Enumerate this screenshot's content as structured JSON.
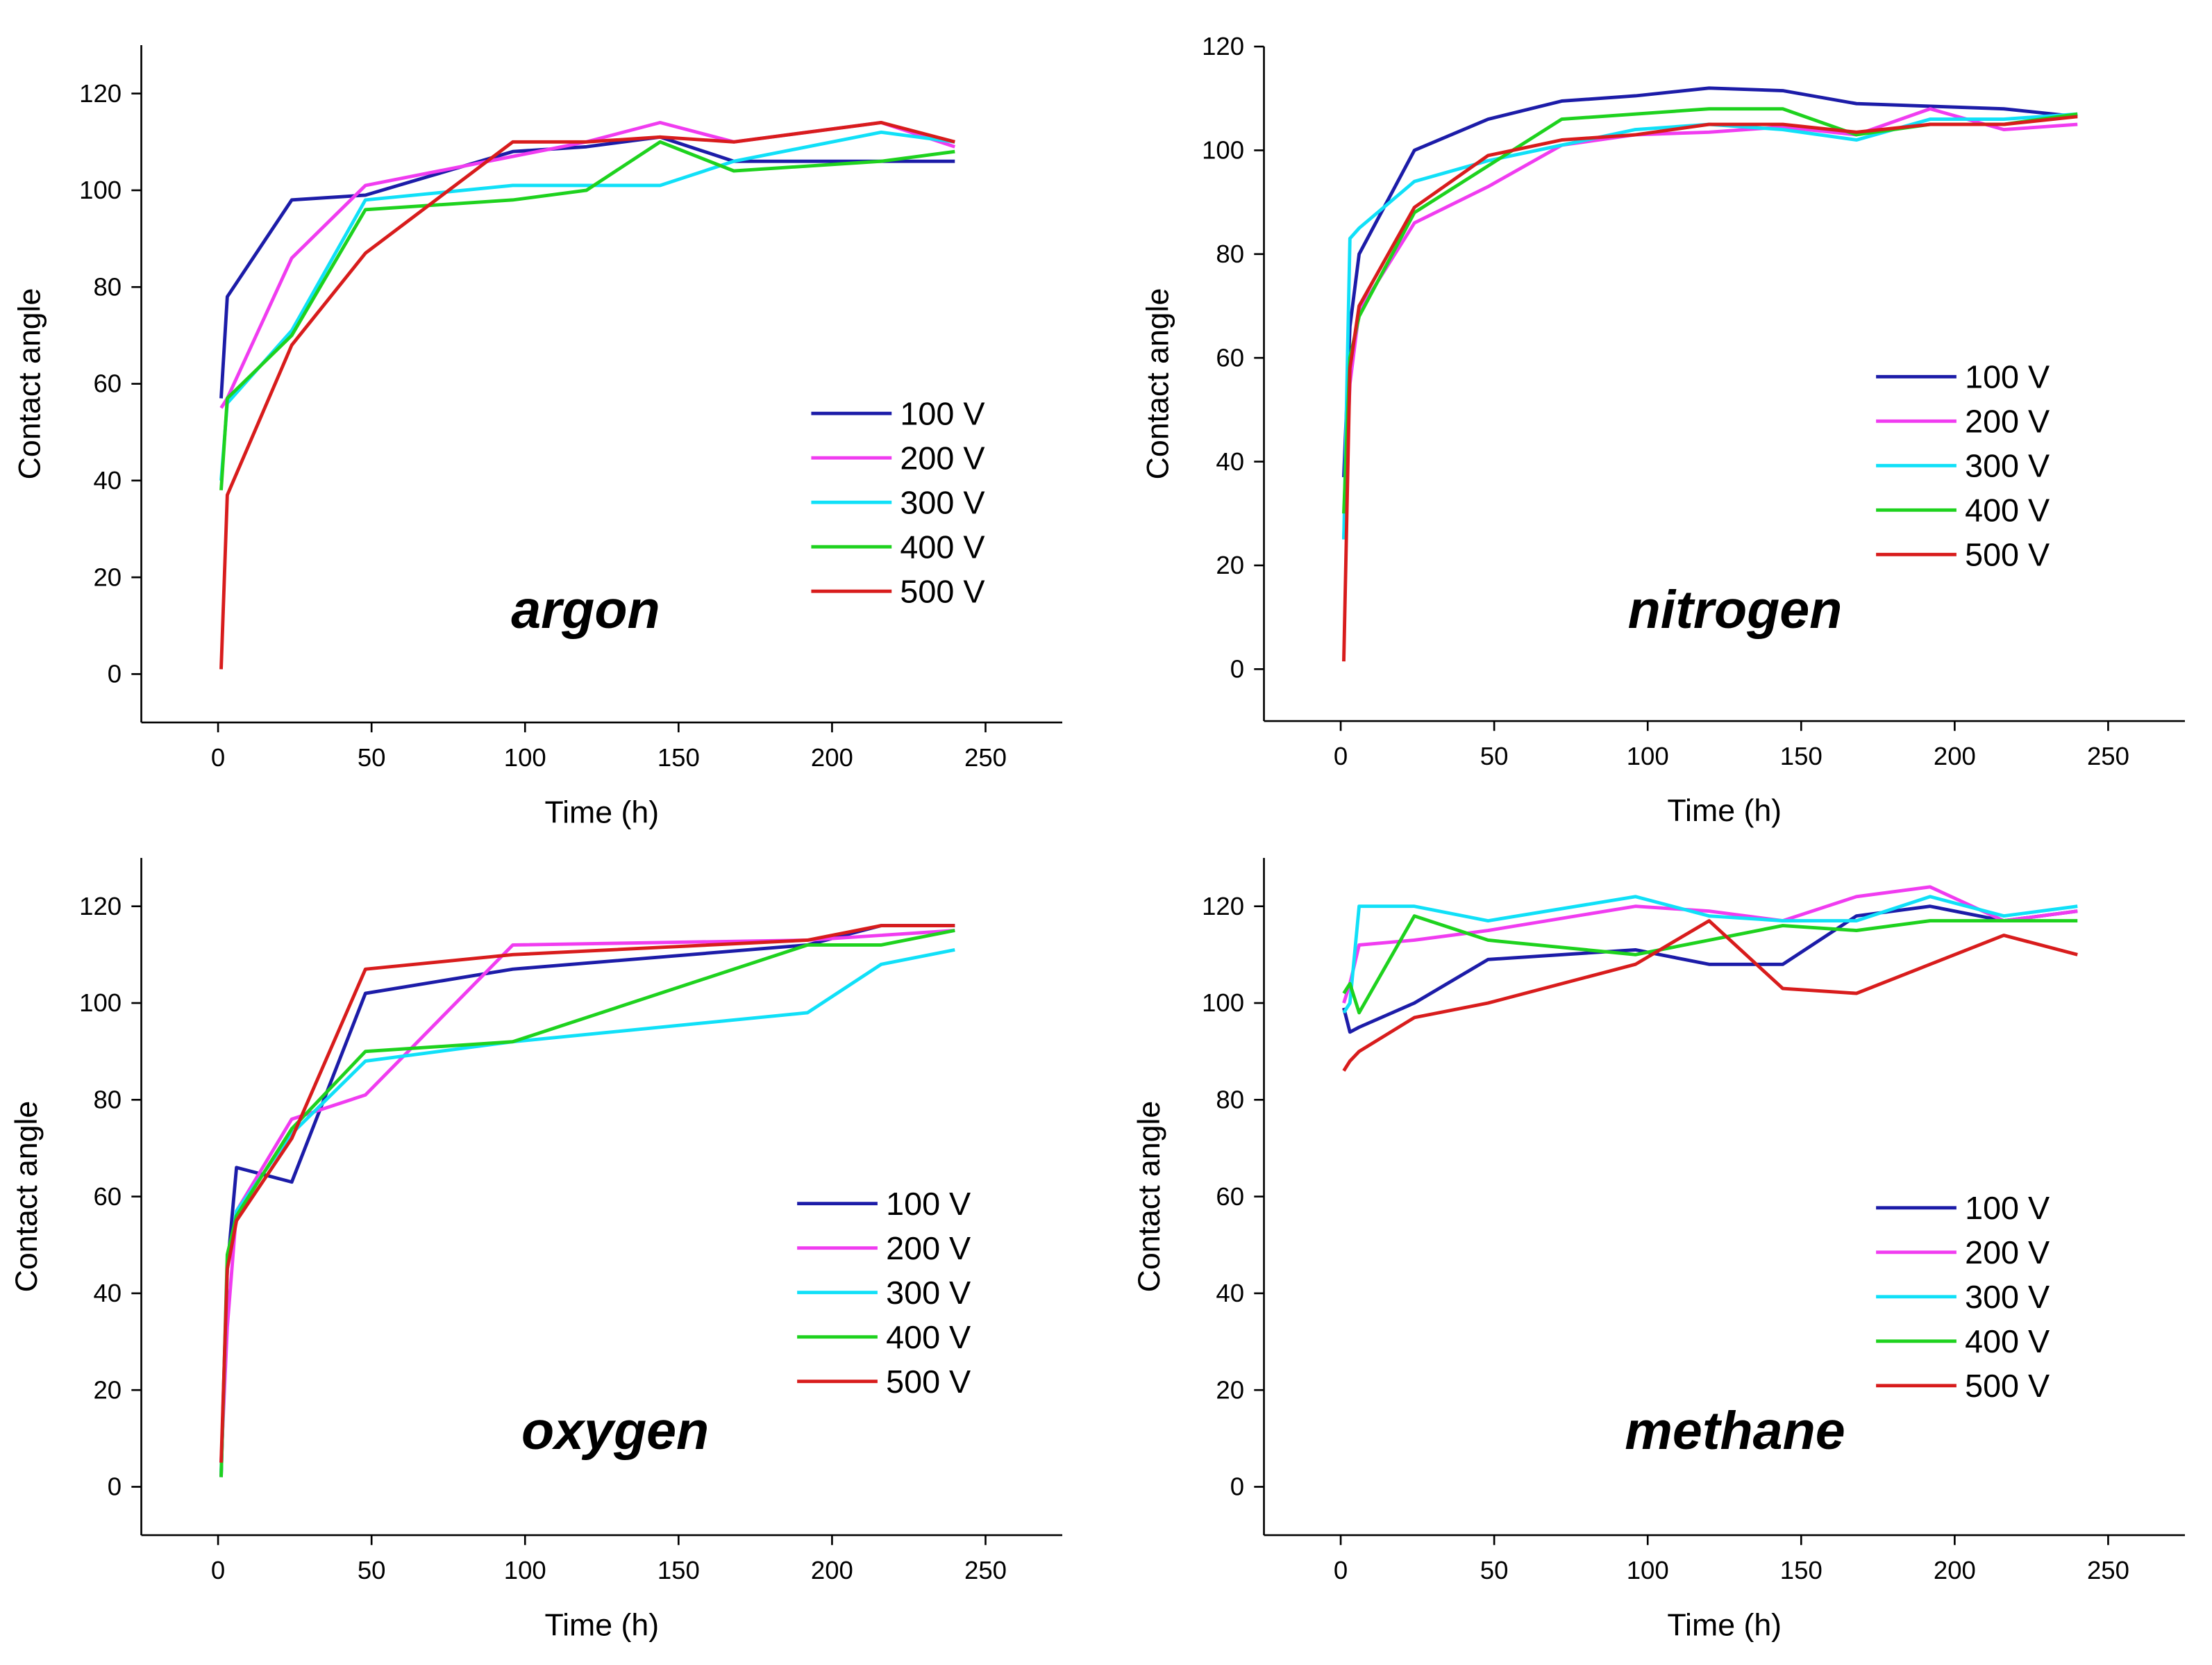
{
  "chart_data": [
    {
      "type": "line",
      "title": "argon",
      "x_label": "Time (h)",
      "y_label": "Contact angle",
      "x": [
        1,
        3,
        24,
        48,
        96,
        120,
        144,
        168,
        216,
        240
      ],
      "xlim": [
        -25,
        275
      ],
      "xticks": [
        0,
        50,
        100,
        150,
        200,
        250
      ],
      "ylim": [
        -10,
        130
      ],
      "yticks": [
        0,
        20,
        40,
        60,
        80,
        100,
        120
      ],
      "series": [
        {
          "name": "100 V",
          "color": "#1c1ca8",
          "values": [
            57,
            78,
            98,
            99,
            108,
            109,
            111,
            106,
            106,
            106
          ]
        },
        {
          "name": "200 V",
          "color": "#f03cf0",
          "values": [
            55,
            57,
            86,
            101,
            107,
            110,
            114,
            110,
            114,
            109
          ]
        },
        {
          "name": "300 V",
          "color": "#10e0f8",
          "values": [
            40,
            56,
            71,
            98,
            101,
            101,
            101,
            106,
            112,
            110
          ]
        },
        {
          "name": "400 V",
          "color": "#1ed21e",
          "values": [
            38,
            57,
            70,
            96,
            98,
            100,
            110,
            104,
            106,
            108
          ]
        },
        {
          "name": "500 V",
          "color": "#d81c1c",
          "values": [
            1,
            37,
            68,
            87,
            110,
            110,
            111,
            110,
            114,
            110
          ]
        }
      ]
    },
    {
      "type": "line",
      "title": "nitrogen",
      "x_label": "Time (h)",
      "y_label": "Contact angle",
      "x": [
        1,
        3,
        6,
        24,
        48,
        72,
        96,
        120,
        144,
        168,
        192,
        216,
        240
      ],
      "xlim": [
        -25,
        275
      ],
      "xticks": [
        0,
        50,
        100,
        150,
        200,
        250
      ],
      "ylim": [
        -10,
        120
      ],
      "yticks": [
        0,
        20,
        40,
        60,
        80,
        100,
        120
      ],
      "series": [
        {
          "name": "100 V",
          "color": "#1c1ca8",
          "values": [
            37,
            66,
            80,
            100,
            106,
            109.5,
            110.5,
            112,
            111.5,
            109,
            108.5,
            108,
            106.5
          ]
        },
        {
          "name": "200 V",
          "color": "#f03cf0",
          "values": [
            25,
            55,
            69,
            86,
            93,
            101,
            103,
            103.5,
            104.5,
            103,
            108,
            104,
            105
          ]
        },
        {
          "name": "300 V",
          "color": "#10e0f8",
          "values": [
            25,
            83,
            85,
            94,
            98,
            101,
            104,
            105,
            104,
            102,
            106,
            106,
            107
          ]
        },
        {
          "name": "400 V",
          "color": "#1ed21e",
          "values": [
            30,
            60,
            68,
            88,
            97,
            106,
            107,
            108,
            108,
            103,
            105,
            105,
            107
          ]
        },
        {
          "name": "500 V",
          "color": "#d81c1c",
          "values": [
            1.5,
            58,
            70,
            89,
            99,
            102,
            103,
            105,
            105,
            103.5,
            105,
            105,
            106.5
          ]
        }
      ]
    },
    {
      "type": "line",
      "title": "oxygen",
      "x_label": "Time (h)",
      "y_label": "Contact angle",
      "x": [
        1,
        3,
        6,
        24,
        48,
        96,
        192,
        216,
        240
      ],
      "xlim": [
        -25,
        275
      ],
      "xticks": [
        0,
        50,
        100,
        150,
        200,
        250
      ],
      "ylim": [
        -10,
        130
      ],
      "yticks": [
        0,
        20,
        40,
        60,
        80,
        100,
        120
      ],
      "series": [
        {
          "name": "100 V",
          "color": "#1c1ca8",
          "values": [
            2,
            45,
            66,
            63,
            102,
            107,
            112,
            116,
            116
          ]
        },
        {
          "name": "200 V",
          "color": "#f03cf0",
          "values": [
            5,
            33,
            57,
            76,
            81,
            112,
            113,
            114,
            115
          ]
        },
        {
          "name": "300 V",
          "color": "#10e0f8",
          "values": [
            3,
            45,
            57,
            73,
            88,
            92,
            98,
            108,
            111
          ]
        },
        {
          "name": "400 V",
          "color": "#1ed21e",
          "values": [
            2,
            48,
            56,
            74,
            90,
            92,
            112,
            112,
            115
          ]
        },
        {
          "name": "500 V",
          "color": "#d81c1c",
          "values": [
            5,
            45,
            55,
            72,
            107,
            110,
            113,
            116,
            116
          ]
        }
      ]
    },
    {
      "type": "line",
      "title": "methane",
      "x_label": "Time (h)",
      "y_label": "Contact angle",
      "x": [
        1,
        3,
        6,
        24,
        48,
        96,
        120,
        144,
        168,
        192,
        216,
        240
      ],
      "xlim": [
        -25,
        275
      ],
      "xticks": [
        0,
        50,
        100,
        150,
        200,
        250
      ],
      "ylim": [
        -10,
        130
      ],
      "yticks": [
        0,
        20,
        40,
        60,
        80,
        100,
        120
      ],
      "series": [
        {
          "name": "100 V",
          "color": "#1c1ca8",
          "values": [
            99,
            94,
            95,
            100,
            109,
            111,
            108,
            108,
            118,
            120,
            117,
            119
          ]
        },
        {
          "name": "200 V",
          "color": "#f03cf0",
          "values": [
            100,
            104,
            112,
            113,
            115,
            120,
            119,
            117,
            122,
            124,
            117,
            119
          ]
        },
        {
          "name": "300 V",
          "color": "#10e0f8",
          "values": [
            98,
            100,
            120,
            120,
            117,
            122,
            118,
            117,
            117,
            122,
            118,
            120
          ]
        },
        {
          "name": "400 V",
          "color": "#1ed21e",
          "values": [
            102,
            104,
            98,
            118,
            113,
            110,
            113,
            116,
            115,
            117,
            117,
            117
          ]
        },
        {
          "name": "500 V",
          "color": "#d81c1c",
          "values": [
            86,
            88,
            90,
            97,
            100,
            108,
            117,
            103,
            102,
            108,
            114,
            110
          ]
        }
      ]
    }
  ]
}
